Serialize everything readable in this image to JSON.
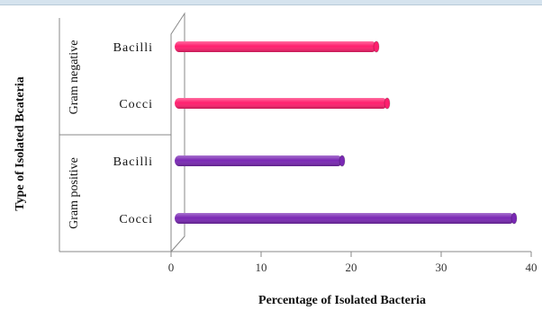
{
  "chart_data": {
    "type": "bar",
    "orientation": "horizontal",
    "title": "",
    "xlabel": "Percentage of Isolated  Bacteria",
    "ylabel": "Type of Isolated Bcateria",
    "xlim": [
      0,
      40
    ],
    "xticks": [
      0,
      10,
      20,
      30,
      40
    ],
    "grid": false,
    "groups": [
      {
        "label": "Gram negative",
        "color": "#ff1f6e",
        "categories": [
          {
            "label": "Bacilli",
            "value": 22.8
          },
          {
            "label": "Cocci",
            "value": 24.0
          }
        ]
      },
      {
        "label": "Gram positive",
        "color": "#7a28b4",
        "categories": [
          {
            "label": "Bacilli",
            "value": 19.0
          },
          {
            "label": "Cocci",
            "value": 38.1
          }
        ]
      }
    ]
  }
}
